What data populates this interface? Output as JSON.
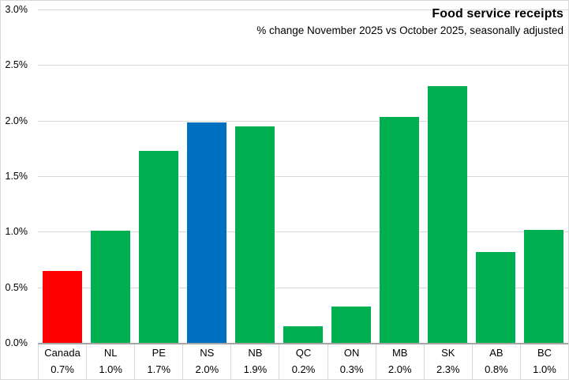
{
  "title": "Food service receipts",
  "subtitle": "% change November 2025 vs October 2025, seasonally adjusted",
  "colors": {
    "canada_bar": "#ff0000",
    "province_bar": "#00b050",
    "highlight_bar": "#0070c0",
    "gridline": "#d9d9d9",
    "axis_line": "#a6a6a6",
    "border": "#d9d9d9",
    "text": "#000000",
    "background": "#ffffff"
  },
  "chart_data": {
    "type": "bar",
    "title": "Food service receipts",
    "subtitle": "% change November 2025 vs October 2025, seasonally adjusted",
    "categories": [
      "Canada",
      "NL",
      "PE",
      "NS",
      "NB",
      "QC",
      "ON",
      "MB",
      "SK",
      "AB",
      "BC"
    ],
    "values": [
      0.7,
      1.0,
      1.7,
      2.0,
      1.9,
      0.2,
      0.3,
      2.0,
      2.3,
      0.8,
      1.0
    ],
    "value_labels": [
      "0.7%",
      "1.0%",
      "1.7%",
      "2.0%",
      "1.9%",
      "0.2%",
      "0.3%",
      "2.0%",
      "2.3%",
      "0.8%",
      "1.0%"
    ],
    "plotted_values": [
      0.65,
      1.01,
      1.73,
      1.98,
      1.95,
      0.15,
      0.33,
      2.03,
      2.31,
      0.82,
      1.02
    ],
    "bar_colors": [
      "#ff0000",
      "#00b050",
      "#00b050",
      "#0070c0",
      "#00b050",
      "#00b050",
      "#00b050",
      "#00b050",
      "#00b050",
      "#00b050",
      "#00b050"
    ],
    "unit": "%",
    "xlabel": "",
    "ylabel": "",
    "ylim": [
      0,
      3.0
    ],
    "ytick_labels": [
      "0.0%",
      "0.5%",
      "1.0%",
      "1.5%",
      "2.0%",
      "2.5%",
      "3.0%"
    ],
    "grid": true,
    "legend": false
  }
}
